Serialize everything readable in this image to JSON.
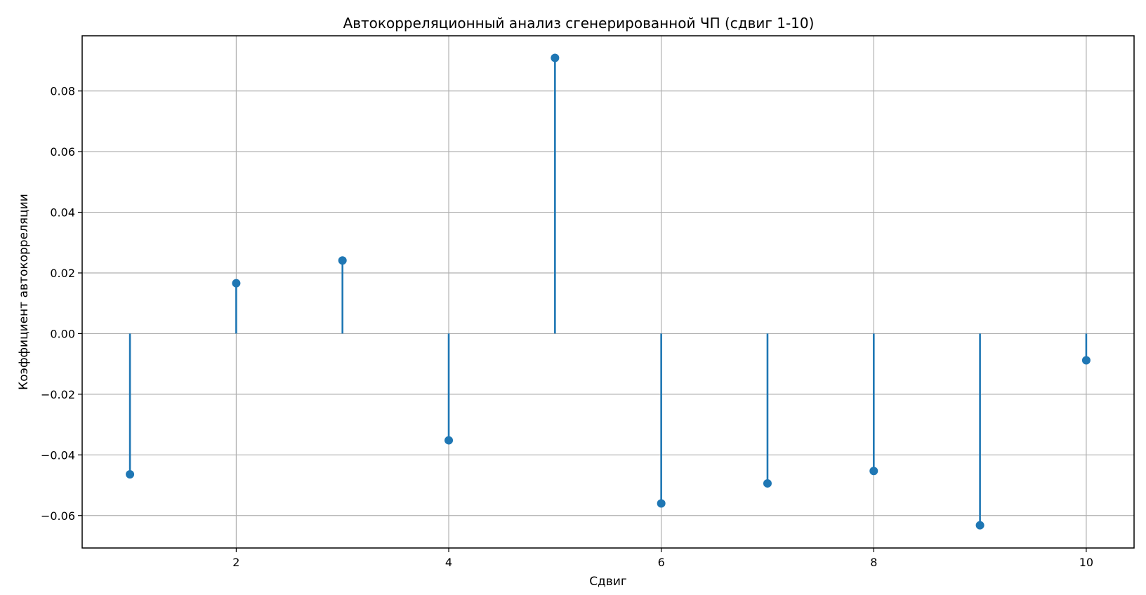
{
  "chart_data": {
    "type": "stem",
    "title": "Автокорреляционный анализ сгенерированной ЧП (сдвиг 1-10)",
    "xlabel": "Сдвиг",
    "ylabel": "Коэффициент автокорреляции",
    "x": [
      1,
      2,
      3,
      4,
      5,
      6,
      7,
      8,
      9,
      10
    ],
    "values": [
      -0.0464,
      0.0166,
      0.0241,
      -0.0352,
      0.0909,
      -0.056,
      -0.0494,
      -0.0453,
      -0.0632,
      -0.0088
    ],
    "xlim": [
      0.55,
      10.45
    ],
    "ylim": [
      -0.0707,
      0.0982
    ],
    "xticks": [
      2,
      4,
      6,
      8,
      10
    ],
    "xtick_labels": [
      "2",
      "4",
      "6",
      "8",
      "10"
    ],
    "yticks": [
      -0.06,
      -0.04,
      -0.02,
      0.0,
      0.02,
      0.04,
      0.06,
      0.08
    ],
    "ytick_labels": [
      "−0.06",
      "−0.04",
      "−0.02",
      "0.00",
      "0.02",
      "0.04",
      "0.06",
      "0.08"
    ],
    "grid": true,
    "color": "#1f77b4",
    "grid_color": "#b0b0b0"
  }
}
